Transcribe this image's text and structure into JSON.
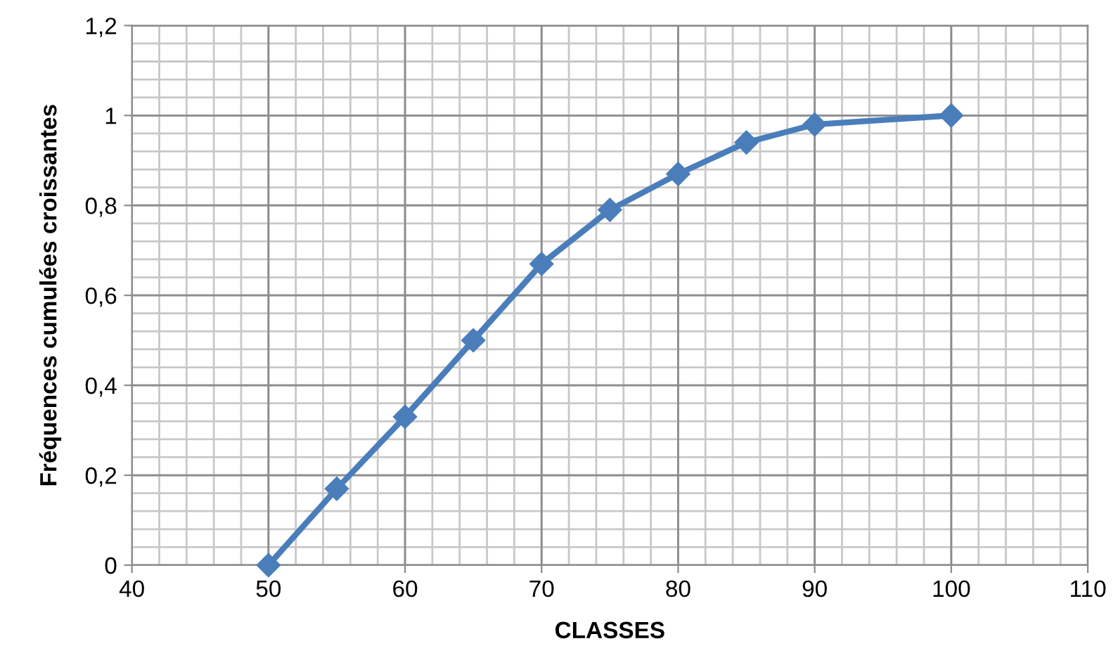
{
  "chart_data": {
    "type": "line",
    "xlabel": "CLASSES",
    "ylabel": "Fréquences cumulées croissantes",
    "x": [
      50,
      55,
      60,
      65,
      70,
      75,
      80,
      85,
      90,
      100
    ],
    "series": [
      {
        "color": "#4a7ebb",
        "values": [
          0,
          0.17,
          0.33,
          0.5,
          0.67,
          0.79,
          0.87,
          0.94,
          0.98,
          1.0
        ]
      }
    ],
    "xlim": [
      40,
      110
    ],
    "xticks": [
      40,
      50,
      60,
      70,
      80,
      90,
      100,
      110
    ],
    "ylim": [
      0,
      1.2
    ],
    "yticks": [
      0,
      {
        "value": 0.2,
        "label": "0,2"
      },
      {
        "value": 0.4,
        "label": "0,4"
      },
      {
        "value": 0.6,
        "label": "0,6"
      },
      {
        "value": 0.8,
        "label": "0,8"
      },
      1,
      {
        "value": 1.2,
        "label": "1,2"
      }
    ],
    "grid": true,
    "marker": "diamond",
    "line_style": "solid",
    "legend": false
  }
}
